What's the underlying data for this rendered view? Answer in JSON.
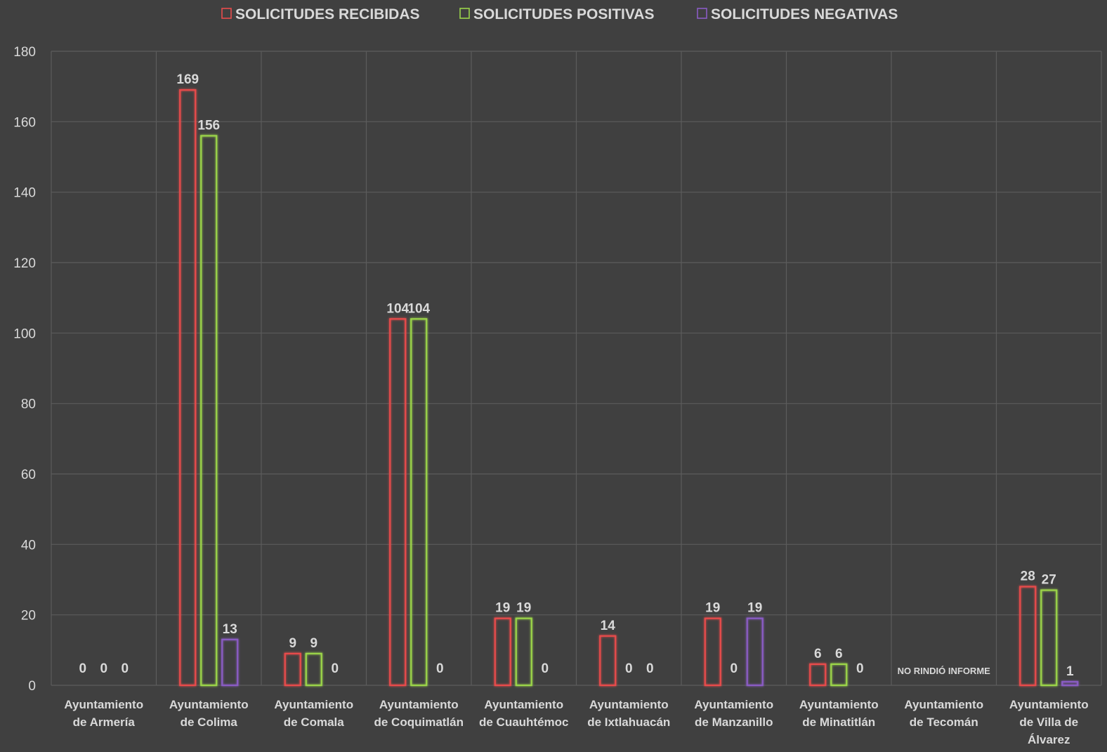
{
  "chart_data": {
    "type": "bar",
    "categories": [
      [
        "Ayuntamiento",
        "de Armería"
      ],
      [
        "Ayuntamiento",
        "de Colima"
      ],
      [
        "Ayuntamiento",
        "de Comala"
      ],
      [
        "Ayuntamiento",
        "de Coquimatlán"
      ],
      [
        "Ayuntamiento",
        "de Cuauhtémoc"
      ],
      [
        "Ayuntamiento",
        "de Ixtlahuacán"
      ],
      [
        "Ayuntamiento",
        "de Manzanillo"
      ],
      [
        "Ayuntamiento",
        "de Minatitlán"
      ],
      [
        "Ayuntamiento",
        "de Tecomán"
      ],
      [
        "Ayuntamiento",
        "de Villa de",
        "Álvarez"
      ]
    ],
    "series": [
      {
        "name": "SOLICITUDES RECIBIDAS",
        "color": "#e84c4c",
        "values": [
          0,
          169,
          9,
          104,
          19,
          14,
          19,
          6,
          null,
          28
        ]
      },
      {
        "name": "SOLICITUDES POSITIVAS",
        "color": "#9bd44a",
        "values": [
          0,
          156,
          9,
          104,
          19,
          0,
          0,
          6,
          null,
          27
        ]
      },
      {
        "name": "SOLICITUDES NEGATIVAS",
        "color": "#8a5cc4",
        "values": [
          0,
          13,
          0,
          0,
          0,
          0,
          19,
          0,
          null,
          1
        ]
      }
    ],
    "annotations": [
      {
        "category_index": 8,
        "text": "NO RINDIÓ INFORME"
      }
    ],
    "ylim": [
      0,
      180
    ],
    "yticks": [
      0,
      20,
      40,
      60,
      80,
      100,
      120,
      140,
      160,
      180
    ],
    "grid": true,
    "legend_position": "top",
    "title": "",
    "xlabel": "",
    "ylabel": ""
  }
}
